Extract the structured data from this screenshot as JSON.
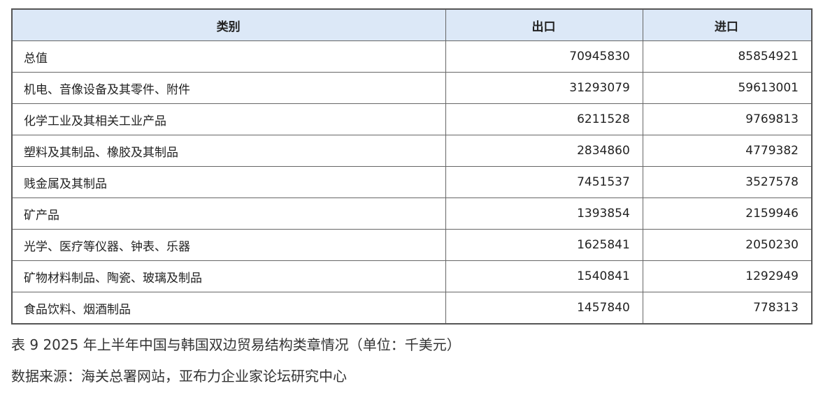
{
  "table": {
    "headers": [
      "类别",
      "出口",
      "进口"
    ],
    "rows": [
      {
        "category": "总值",
        "export": "70945830",
        "import": "85854921"
      },
      {
        "category": "机电、音像设备及其零件、附件",
        "export": "31293079",
        "import": "59613001"
      },
      {
        "category": "化学工业及其相关工业产品",
        "export": "6211528",
        "import": "9769813"
      },
      {
        "category": "塑料及其制品、橡胶及其制品",
        "export": "2834860",
        "import": "4779382"
      },
      {
        "category": "贱金属及其制品",
        "export": "7451537",
        "import": "3527578"
      },
      {
        "category": "矿产品",
        "export": "1393854",
        "import": "2159946"
      },
      {
        "category": "光学、医疗等仪器、钟表、乐器",
        "export": "1625841",
        "import": "2050230"
      },
      {
        "category": "矿物材料制品、陶瓷、玻璃及制品",
        "export": "1540841",
        "import": "1292949"
      },
      {
        "category": "食品饮料、烟酒制品",
        "export": "1457840",
        "import": "778313"
      }
    ],
    "header_color": "#dce8f7"
  },
  "caption": "表 9   2025 年上半年中国与韩国双边贸易结构类章情况（单位：千美元）",
  "source": "数据来源：海关总署网站，亚布力企业家论坛研究中心"
}
